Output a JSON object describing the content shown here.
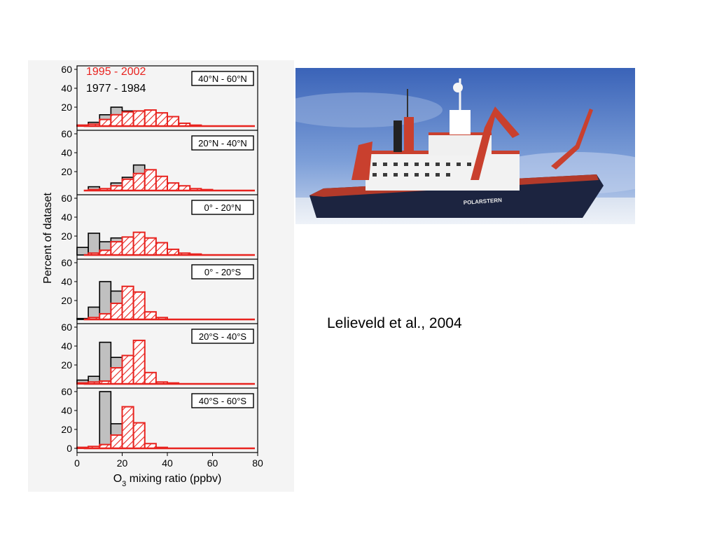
{
  "citation": "Lelieveld et al., 2004",
  "colors": {
    "recent": "#e8231f",
    "old": "#000000",
    "old_fill": "#c0c0c0",
    "panel_bg": "#f4f4f4"
  },
  "chart_data": {
    "type": "bar",
    "subtype": "histogram-small-multiples",
    "xlabel_prefix": "O",
    "xlabel_sub": "3",
    "xlabel_suffix": " mixing ratio (ppbv)",
    "ylabel": "Percent of dataset",
    "xlim": [
      0,
      80
    ],
    "ylim": [
      0,
      65
    ],
    "xticks": [
      0,
      20,
      40,
      60,
      80
    ],
    "yticks": [
      20,
      40,
      60
    ],
    "bin_width": 5,
    "bin_starts": [
      0,
      5,
      10,
      15,
      20,
      25,
      30,
      35,
      40,
      45,
      50,
      55,
      60,
      65,
      70,
      75
    ],
    "legend": [
      {
        "label": "1995 - 2002",
        "color": "#e8231f"
      },
      {
        "label": "1977 - 1984",
        "color": "#000000"
      }
    ],
    "panels": [
      {
        "region": "40°N - 60°N",
        "series": [
          {
            "name": "1977 - 1984",
            "values": [
              1,
              4,
              12,
              20,
              16,
              14,
              12,
              8,
              3,
              1,
              0,
              0,
              0,
              0,
              0,
              0
            ]
          },
          {
            "name": "1995 - 2002",
            "values": [
              1,
              2,
              7,
              12,
              15,
              16,
              17,
              14,
              10,
              3,
              1,
              0,
              0,
              0,
              0,
              0
            ]
          }
        ]
      },
      {
        "region": "20°N - 40°N",
        "series": [
          {
            "name": "1977 - 1984",
            "values": [
              0,
              4,
              2,
              8,
              14,
              27,
              16,
              6,
              2,
              0,
              0,
              0,
              0,
              0,
              0,
              0
            ]
          },
          {
            "name": "1995 - 2002",
            "values": [
              0,
              1,
              2,
              5,
              12,
              18,
              22,
              15,
              8,
              5,
              2,
              1,
              0,
              0,
              0,
              0
            ]
          }
        ]
      },
      {
        "region": "0° - 20°N",
        "series": [
          {
            "name": "1977 - 1984",
            "values": [
              8,
              23,
              14,
              18,
              12,
              8,
              4,
              2,
              0,
              0,
              0,
              0,
              0,
              0,
              0,
              0
            ]
          },
          {
            "name": "1995 - 2002",
            "values": [
              0,
              2,
              5,
              14,
              19,
              24,
              18,
              13,
              6,
              2,
              1,
              0,
              0,
              0,
              0,
              0
            ]
          }
        ]
      },
      {
        "region": "0° - 20°S",
        "series": [
          {
            "name": "1977 - 1984",
            "values": [
              1,
              13,
              40,
              30,
              10,
              4,
              1,
              0,
              0,
              0,
              0,
              0,
              0,
              0,
              0,
              0
            ]
          },
          {
            "name": "1995 - 2002",
            "values": [
              0,
              2,
              6,
              17,
              35,
              29,
              8,
              2,
              0,
              0,
              0,
              0,
              0,
              0,
              0,
              0
            ]
          }
        ]
      },
      {
        "region": "20°S - 40°S",
        "series": [
          {
            "name": "1977 - 1984",
            "values": [
              4,
              8,
              44,
              28,
              12,
              8,
              2,
              0,
              0,
              0,
              0,
              0,
              0,
              0,
              0,
              0
            ]
          },
          {
            "name": "1995 - 2002",
            "values": [
              1,
              2,
              3,
              17,
              30,
              46,
              12,
              2,
              1,
              0,
              0,
              0,
              0,
              0,
              0,
              0
            ]
          }
        ]
      },
      {
        "region": "40°S - 60°S",
        "series": [
          {
            "name": "1977 - 1984",
            "values": [
              1,
              2,
              60,
              26,
              14,
              4,
              2,
              0,
              0,
              0,
              0,
              0,
              0,
              0,
              0,
              0
            ]
          },
          {
            "name": "1995 - 2002",
            "values": [
              1,
              2,
              4,
              14,
              44,
              27,
              5,
              1,
              0,
              0,
              0,
              0,
              0,
              0,
              0,
              0
            ]
          }
        ]
      }
    ]
  }
}
